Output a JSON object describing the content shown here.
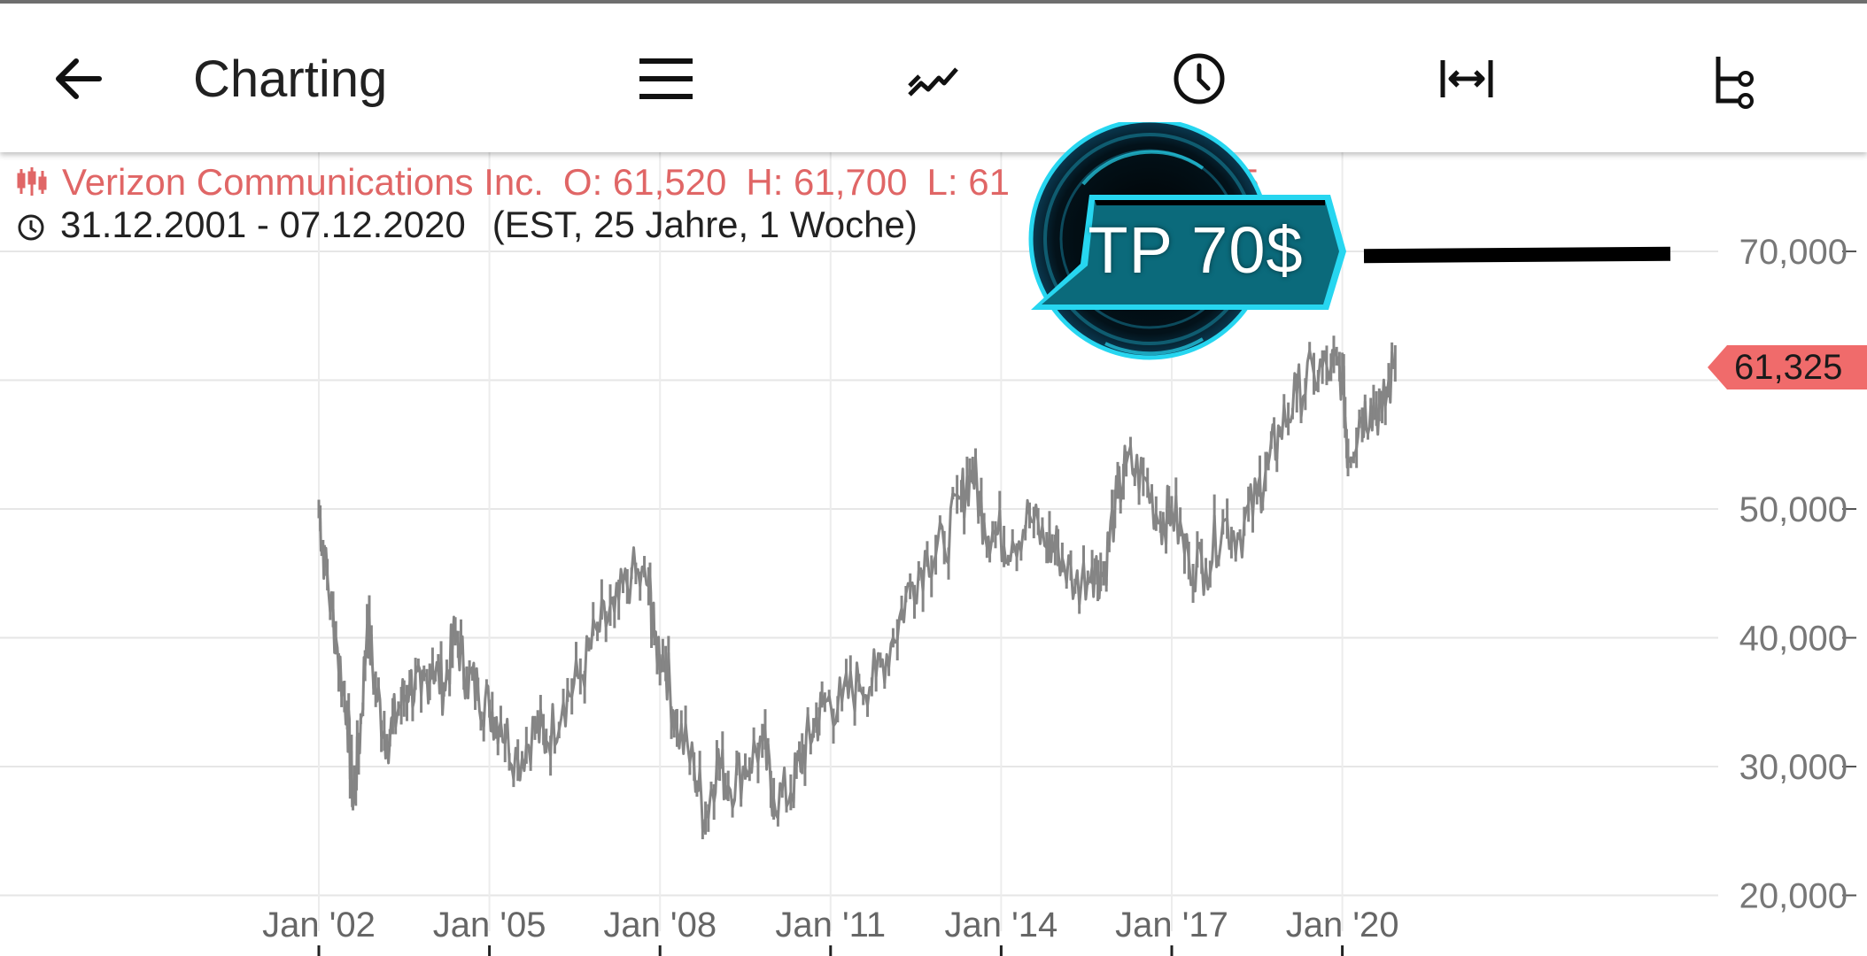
{
  "header": {
    "title": "Charting",
    "icons": [
      "back-arrow-icon",
      "menu-icon",
      "line-chart-icon",
      "clock-icon",
      "fit-width-icon",
      "indicators-tree-icon"
    ]
  },
  "instrument": {
    "name": "Verizon Communications Inc.",
    "open": "O: 61,520",
    "high": "H: 61,700",
    "low": "L: 61",
    "close_fragment": "325",
    "range": "31.12.2001 - 07.12.2020",
    "range_detail": "(EST, 25 Jahre, 1 Woche)"
  },
  "current_price": "61,325",
  "annotation": {
    "text": "TP 70$"
  },
  "colors": {
    "line": "#858585",
    "info_red": "#e06666",
    "price_tag": "#f06b6b",
    "badge": "#0b6a7b",
    "badge_glow": "#27d6f0"
  },
  "chart_data": {
    "type": "line",
    "title": "",
    "xlabel": "",
    "ylabel": "",
    "ylim": [
      20,
      70
    ],
    "y_tick_labels": [
      "70,000",
      "50,000",
      "40,000",
      "30,000",
      "20,000"
    ],
    "y_ticks": [
      70,
      50,
      40,
      30,
      20
    ],
    "x_tick_labels": [
      "Jan '02",
      "Jan '05",
      "Jan '08",
      "Jan '11",
      "Jan '14",
      "Jan '17",
      "Jan '20"
    ],
    "x_ticks": [
      2002,
      2005,
      2008,
      2011,
      2014,
      2017,
      2020
    ],
    "xlim": [
      1996.4,
      2022.6
    ],
    "series": [
      {
        "x": [
          2002.0,
          2002.1,
          2002.3,
          2002.5,
          2002.6,
          2002.7,
          2002.85,
          2003.0,
          2003.2,
          2003.4,
          2003.6,
          2003.8,
          2004.0,
          2004.2,
          2004.4,
          2004.6,
          2004.8,
          2005.0,
          2005.2,
          2005.5,
          2005.8,
          2006.0,
          2006.3,
          2006.6,
          2006.9,
          2007.2,
          2007.5,
          2007.8,
          2007.9,
          2008.1,
          2008.3,
          2008.6,
          2008.8,
          2009.0,
          2009.2,
          2009.5,
          2009.8,
          2010.0,
          2010.3,
          2010.5,
          2010.7,
          2010.9,
          2011.2,
          2011.5,
          2011.8,
          2012.1,
          2012.4,
          2012.7,
          2013.0,
          2013.3,
          2013.5,
          2013.7,
          2013.9,
          2014.2,
          2014.5,
          2014.8,
          2015.0,
          2015.3,
          2015.6,
          2015.8,
          2016.0,
          2016.2,
          2016.5,
          2016.8,
          2017.0,
          2017.3,
          2017.6,
          2017.9,
          2018.2,
          2018.5,
          2018.7,
          2018.9,
          2019.2,
          2019.5,
          2019.8,
          2020.0,
          2020.1,
          2020.3,
          2020.5,
          2020.7,
          2020.93
        ],
        "values": [
          50.0,
          46.0,
          40.0,
          34.0,
          27.5,
          31.0,
          41.0,
          36.0,
          32.0,
          34.5,
          36.5,
          35.5,
          38.0,
          36.0,
          40.5,
          37.0,
          36.0,
          34.5,
          33.5,
          30.5,
          33.0,
          32.0,
          35.0,
          37.0,
          40.5,
          42.0,
          45.0,
          44.0,
          40.0,
          38.0,
          33.0,
          30.0,
          26.0,
          30.5,
          28.5,
          30.0,
          32.0,
          27.5,
          28.0,
          31.0,
          33.0,
          35.0,
          35.0,
          36.5,
          37.0,
          40.0,
          44.0,
          46.5,
          47.0,
          51.0,
          53.0,
          49.0,
          48.0,
          47.5,
          49.5,
          47.0,
          47.0,
          44.0,
          45.5,
          45.0,
          50.0,
          53.5,
          52.5,
          49.0,
          50.0,
          46.0,
          45.5,
          49.0,
          48.0,
          51.0,
          53.5,
          56.0,
          59.0,
          60.5,
          61.0,
          60.5,
          54.0,
          57.0,
          58.0,
          57.5,
          61.3
        ]
      }
    ],
    "annotations": [
      {
        "label": "TP 70$",
        "y": 70
      }
    ],
    "last_value_label": "61,325",
    "grid": true
  }
}
